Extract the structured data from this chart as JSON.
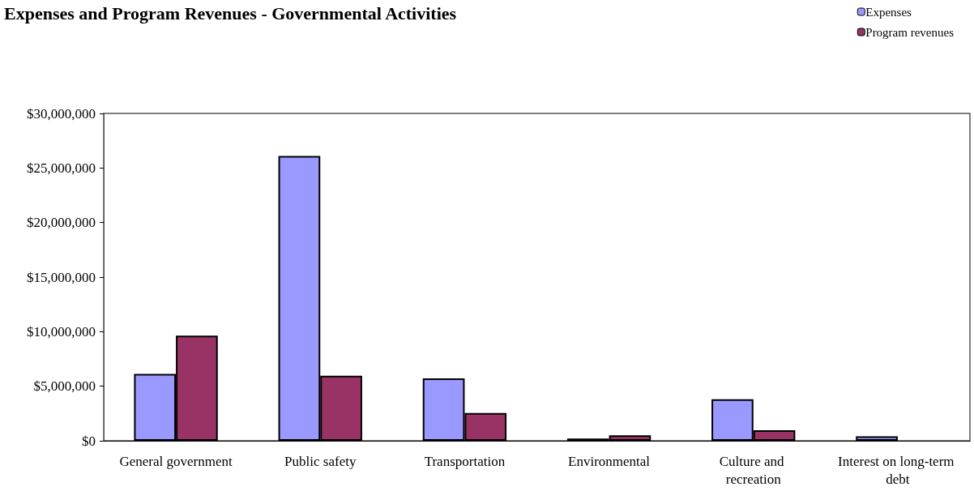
{
  "chart_data": {
    "type": "bar",
    "title": "Expenses and Program Revenues - Governmental Activities",
    "categories": [
      "General government",
      "Public safety",
      "Transportation",
      "Environmental",
      "Culture and recreation",
      "Interest on long-term debt"
    ],
    "series": [
      {
        "name": "Expenses",
        "color": "#9999ff",
        "values": [
          6130000,
          26100000,
          5710000,
          200000,
          3800000,
          400000
        ]
      },
      {
        "name": "Program revenues",
        "color": "#993366",
        "values": [
          9640000,
          5960000,
          2540000,
          500000,
          970000,
          null
        ]
      }
    ],
    "ylim": [
      0,
      30000000
    ],
    "yticks": [
      {
        "value": 0,
        "label": "$0"
      },
      {
        "value": 5000000,
        "label": "$5,000,000"
      },
      {
        "value": 10000000,
        "label": "$10,000,000"
      },
      {
        "value": 15000000,
        "label": "$15,000,000"
      },
      {
        "value": 20000000,
        "label": "$20,000,000"
      },
      {
        "value": 25000000,
        "label": "$25,000,000"
      },
      {
        "value": 30000000,
        "label": "$30,000,000"
      }
    ],
    "grid": false,
    "legend": "top right"
  }
}
